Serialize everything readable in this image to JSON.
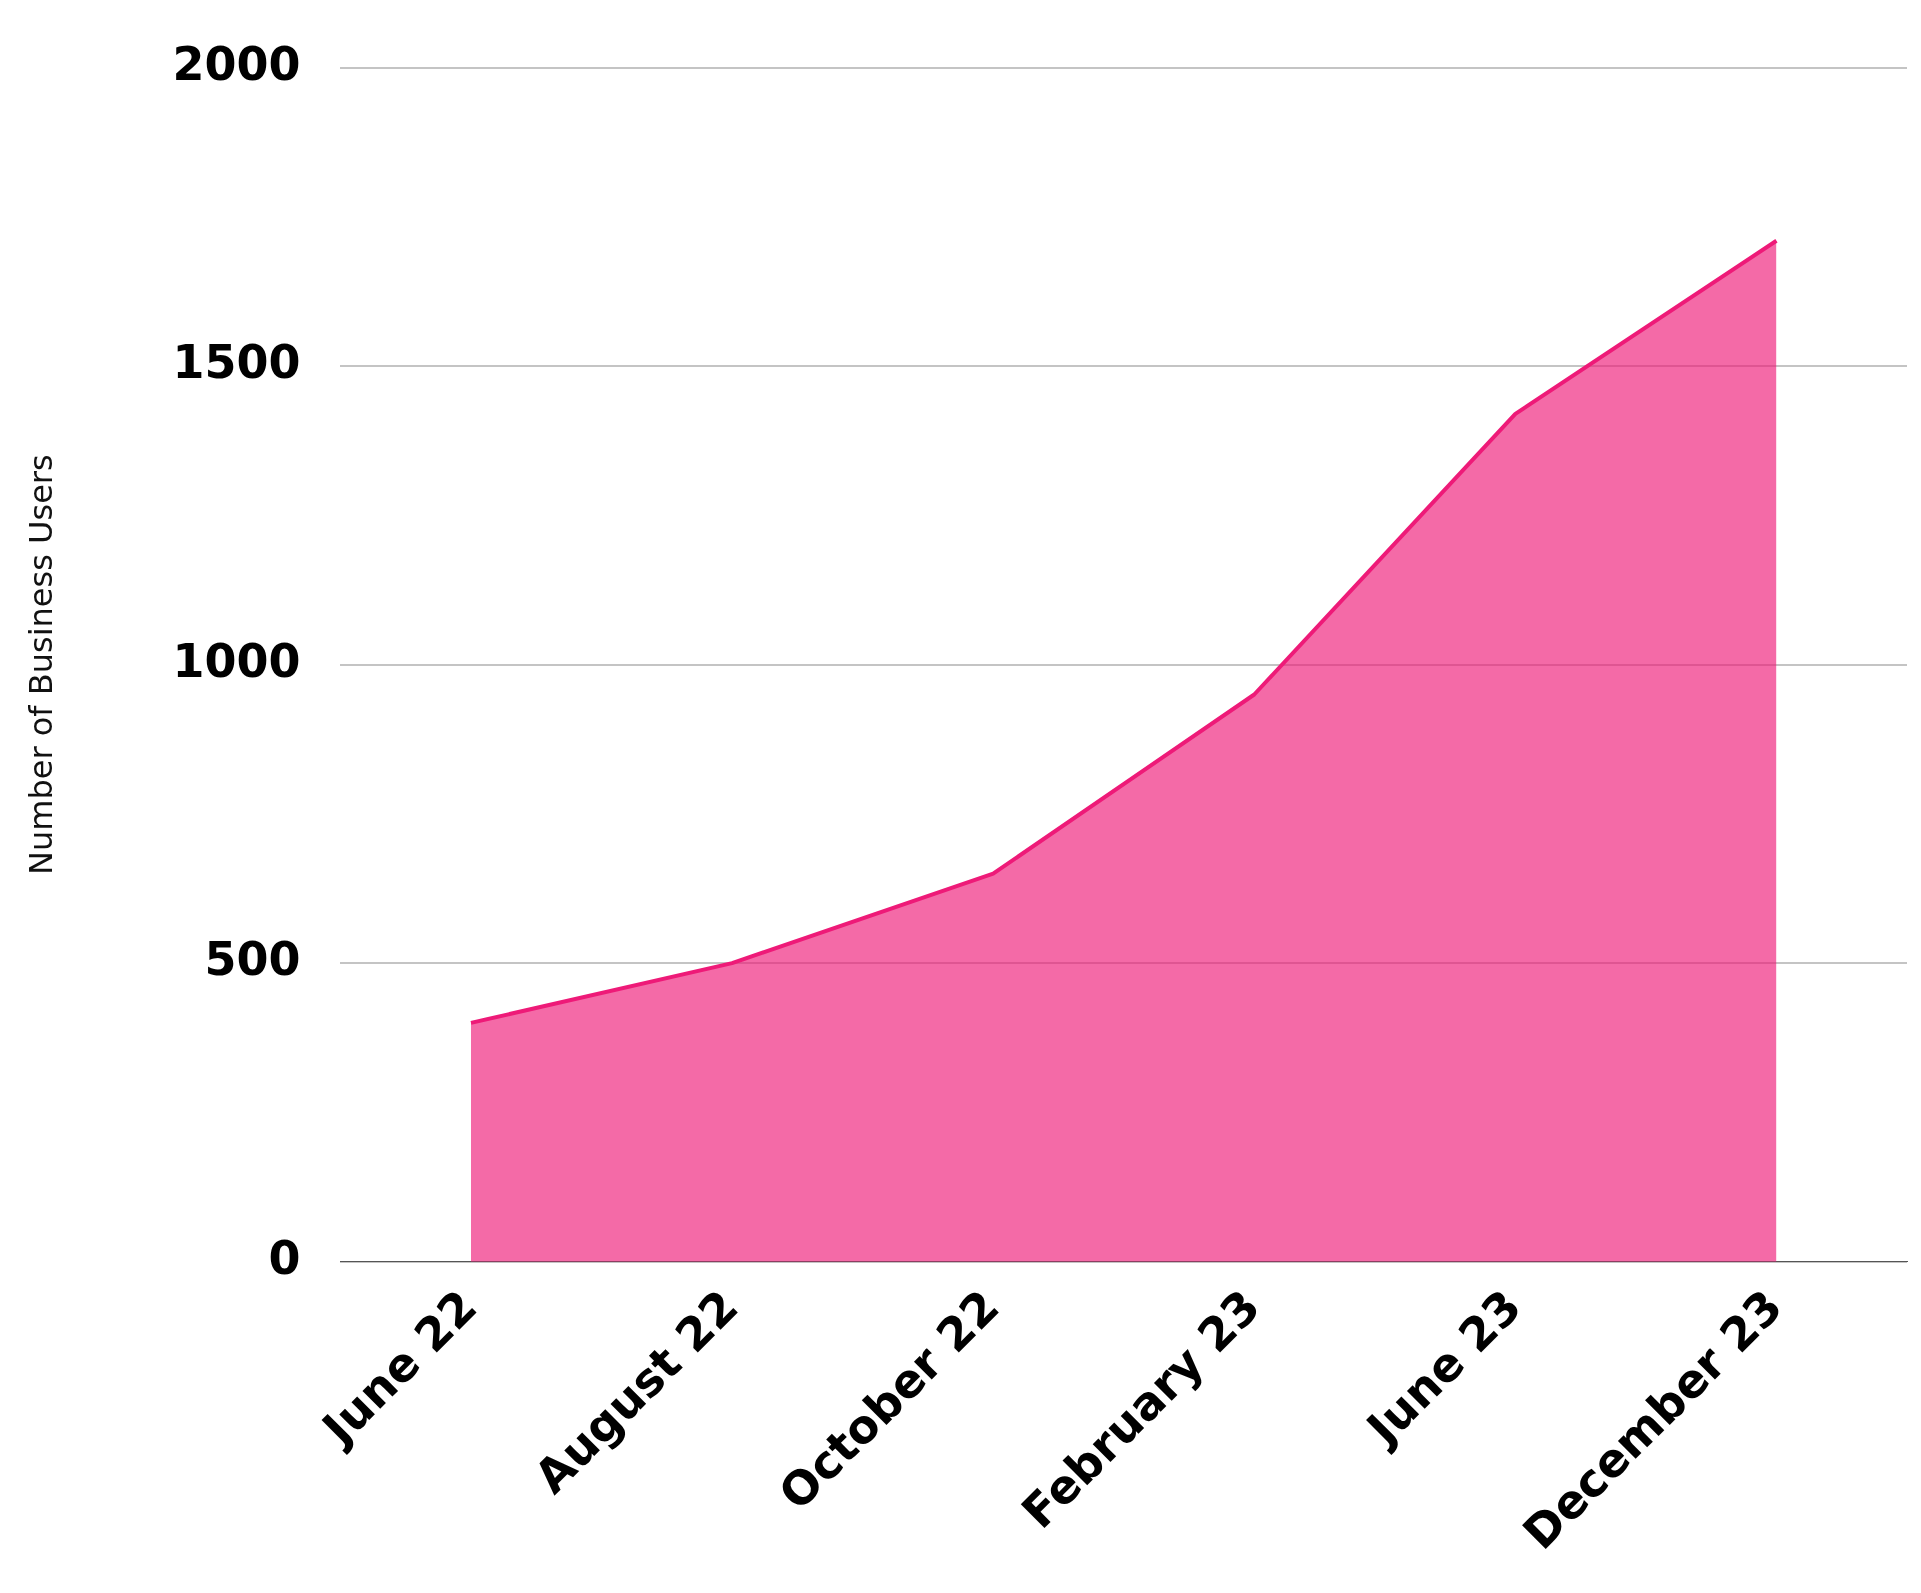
{
  "chart_data": {
    "type": "area",
    "ylabel": "Number of Business Users",
    "categories": [
      "June 22",
      "August 22",
      "October 22",
      "February 23",
      "June 23",
      "December 23"
    ],
    "series": [
      {
        "color": "#ee1a78",
        "values": [
          400,
          500,
          650,
          950,
          1420,
          1710
        ]
      }
    ],
    "ylim": [
      0,
      2000
    ],
    "yticks": [
      0,
      500,
      1000,
      1500,
      2000
    ],
    "grid": "y",
    "legend": false
  }
}
